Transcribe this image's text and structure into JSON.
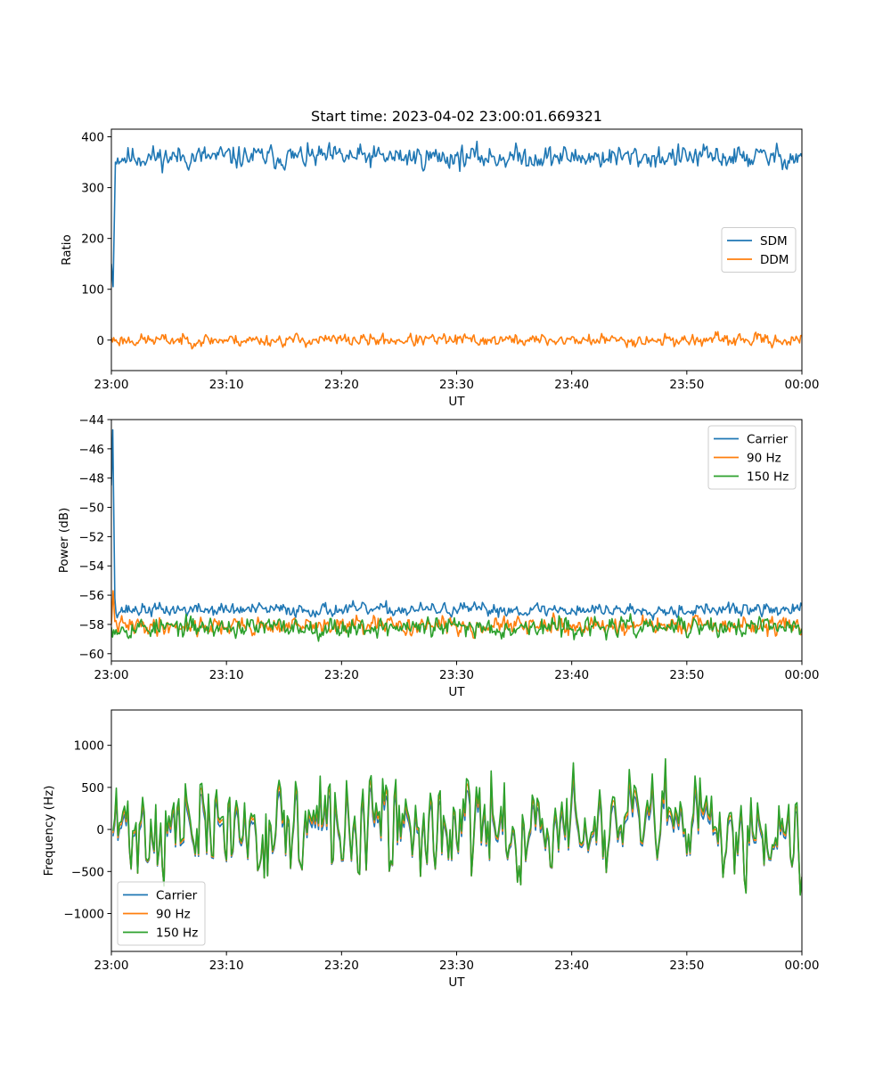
{
  "figure": {
    "title": "Start time: 2023-04-02 23:00:01.669321",
    "background": "#ffffff",
    "colors": [
      "#1f77b4",
      "#ff7f0e",
      "#2ca02c"
    ]
  },
  "chart_data": [
    {
      "type": "line",
      "xlabel": "UT",
      "ylabel": "Ratio",
      "xlim": [
        0,
        60
      ],
      "ylim": [
        -60,
        415
      ],
      "xticks": [
        0,
        10,
        20,
        30,
        40,
        50,
        60
      ],
      "xtick_labels": [
        "23:00",
        "23:10",
        "23:20",
        "23:30",
        "23:40",
        "23:50",
        "00:00"
      ],
      "yticks": [
        0,
        100,
        200,
        300,
        400
      ],
      "ytick_labels": [
        "0",
        "100",
        "200",
        "300",
        "400"
      ],
      "legend_position": "center-right",
      "series": [
        {
          "name": "SDM",
          "color": "#1f77b4",
          "start": [
            [
              0,
              150
            ],
            [
              0.15,
              105
            ],
            [
              0.35,
              350
            ]
          ],
          "level": 360,
          "noise": 15,
          "n": 600,
          "seed": 11
        },
        {
          "name": "DDM",
          "color": "#ff7f0e",
          "start": [
            [
              0,
              5
            ]
          ],
          "level": 0,
          "noise": 8,
          "n": 600,
          "seed": 23
        }
      ]
    },
    {
      "type": "line",
      "xlabel": "UT",
      "ylabel": "Power (dB)",
      "xlim": [
        0,
        60
      ],
      "ylim": [
        -60.5,
        -44
      ],
      "xticks": [
        0,
        10,
        20,
        30,
        40,
        50,
        60
      ],
      "xtick_labels": [
        "23:00",
        "23:10",
        "23:20",
        "23:30",
        "23:40",
        "23:50",
        "00:00"
      ],
      "yticks": [
        -60,
        -58,
        -56,
        -54,
        -52,
        -50,
        -48,
        -46,
        -44
      ],
      "ytick_labels": [
        "−60",
        "−58",
        "−56",
        "−54",
        "−52",
        "−50",
        "−48",
        "−46",
        "−44"
      ],
      "legend_position": "top-right",
      "series": [
        {
          "name": "Carrier",
          "color": "#1f77b4",
          "start": [
            [
              0,
              -48.5
            ],
            [
              0.12,
              -44.7
            ],
            [
              0.3,
              -56.2
            ]
          ],
          "level": -57.0,
          "noise": 0.3,
          "n": 600,
          "seed": 37
        },
        {
          "name": "90 Hz",
          "color": "#ff7f0e",
          "start": [
            [
              0,
              -58
            ],
            [
              0.15,
              -55.7
            ],
            [
              0.3,
              -57.8
            ]
          ],
          "level": -58.1,
          "noise": 0.4,
          "n": 600,
          "seed": 41
        },
        {
          "name": "150 Hz",
          "color": "#2ca02c",
          "start": [
            [
              0,
              -58.2
            ]
          ],
          "level": -58.2,
          "noise": 0.45,
          "n": 600,
          "seed": 53
        }
      ]
    },
    {
      "type": "line",
      "xlabel": "UT",
      "ylabel": "Frequency (Hz)",
      "xlim": [
        0,
        60
      ],
      "ylim": [
        -1450,
        1420
      ],
      "xticks": [
        0,
        10,
        20,
        30,
        40,
        50,
        60
      ],
      "xtick_labels": [
        "23:00",
        "23:10",
        "23:20",
        "23:30",
        "23:40",
        "23:50",
        "00:00"
      ],
      "yticks": [
        -1000,
        -500,
        0,
        500,
        1000
      ],
      "ytick_labels": [
        "−1000",
        "−500",
        "0",
        "500",
        "1000"
      ],
      "legend_position": "bottom-left",
      "series": [
        {
          "name": "Carrier",
          "color": "#1f77b4",
          "level": -40,
          "noise": 400,
          "scale": 0.88,
          "n": 420,
          "seed": 71
        },
        {
          "name": "90 Hz",
          "color": "#ff7f0e",
          "level": 0,
          "noise": 400,
          "scale": 0.95,
          "n": 420,
          "seed": 71
        },
        {
          "name": "150 Hz",
          "color": "#2ca02c",
          "level": 30,
          "noise": 400,
          "scale": 1.0,
          "n": 420,
          "seed": 71
        }
      ]
    }
  ]
}
